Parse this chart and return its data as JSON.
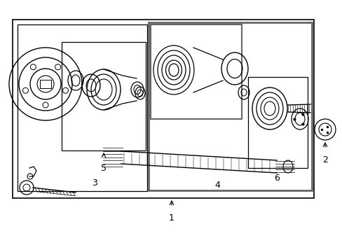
{
  "bg_color": "#ffffff",
  "line_color": "#000000",
  "gray_color": "#666666"
}
